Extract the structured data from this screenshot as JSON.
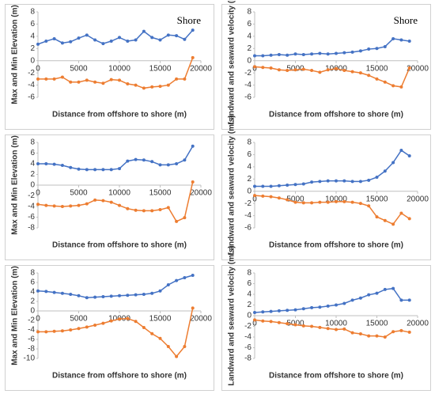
{
  "chart_data": [
    {
      "type": "line",
      "annotation": "Shore",
      "xlabel": "Distance from offshore to shore (m)",
      "ylabel": "Max and Min Elevation (m)",
      "x": [
        0,
        1000,
        2000,
        3000,
        4000,
        5000,
        6000,
        7000,
        8000,
        9000,
        10000,
        11000,
        12000,
        13000,
        14000,
        15000,
        16000,
        17000,
        18000,
        19000
      ],
      "xlim": [
        0,
        20000
      ],
      "xticks": [
        0,
        5000,
        10000,
        15000,
        20000
      ],
      "ylim": [
        -6,
        8
      ],
      "yticks": [
        -6,
        -4,
        -2,
        0,
        2,
        4,
        6,
        8
      ],
      "series": [
        {
          "color": "#4472c4",
          "values": [
            2.7,
            3.2,
            3.6,
            2.9,
            3.1,
            3.7,
            4.2,
            3.4,
            2.8,
            3.2,
            3.8,
            3.2,
            3.4,
            4.8,
            3.8,
            3.4,
            4.2,
            4.1,
            3.5,
            5.0
          ]
        },
        {
          "color": "#ed7d31",
          "values": [
            -3.0,
            -3.0,
            -3.0,
            -2.7,
            -3.5,
            -3.5,
            -3.2,
            -3.5,
            -3.7,
            -3.1,
            -3.2,
            -3.8,
            -4.0,
            -4.5,
            -4.3,
            -4.2,
            -4.0,
            -3.0,
            -3.0,
            0.5
          ]
        }
      ]
    },
    {
      "type": "line",
      "annotation": "Shore",
      "xlabel": "Distance from offshore to shore (m)",
      "ylabel": "Landward and seaward velocity (m/s)",
      "x": [
        0,
        1000,
        2000,
        3000,
        4000,
        5000,
        6000,
        7000,
        8000,
        9000,
        10000,
        11000,
        12000,
        13000,
        14000,
        15000,
        16000,
        17000,
        18000,
        19000
      ],
      "xlim": [
        0,
        20000
      ],
      "xticks": [
        0,
        5000,
        10000,
        15000,
        20000
      ],
      "ylim": [
        -6,
        8
      ],
      "yticks": [
        -6,
        -4,
        -2,
        0,
        2,
        4,
        6,
        8
      ],
      "series": [
        {
          "color": "#4472c4",
          "values": [
            0.8,
            0.8,
            0.9,
            1.0,
            0.9,
            1.1,
            1.0,
            1.1,
            1.2,
            1.1,
            1.2,
            1.3,
            1.4,
            1.6,
            1.9,
            2.0,
            2.3,
            3.6,
            3.4,
            3.2
          ]
        },
        {
          "color": "#ed7d31",
          "values": [
            -1.0,
            -1.1,
            -1.2,
            -1.5,
            -1.6,
            -1.5,
            -1.4,
            -1.6,
            -1.9,
            -1.5,
            -1.3,
            -1.6,
            -1.8,
            -2.0,
            -2.4,
            -3.0,
            -3.5,
            -4.1,
            -4.3,
            -1.2
          ]
        }
      ]
    },
    {
      "type": "line",
      "xlabel": "Distance from offshore to shore (m)",
      "ylabel": "Max and Min Elevation (m)",
      "x": [
        0,
        1000,
        2000,
        3000,
        4000,
        5000,
        6000,
        7000,
        8000,
        9000,
        10000,
        11000,
        12000,
        13000,
        14000,
        15000,
        16000,
        17000,
        18000,
        19000
      ],
      "xlim": [
        0,
        20000
      ],
      "xticks": [
        0,
        5000,
        10000,
        15000,
        20000
      ],
      "ylim": [
        -8,
        8
      ],
      "yticks": [
        -8,
        -6,
        -4,
        -2,
        0,
        2,
        4,
        6,
        8
      ],
      "series": [
        {
          "color": "#4472c4",
          "values": [
            4.0,
            4.0,
            3.9,
            3.7,
            3.3,
            3.0,
            2.9,
            2.9,
            2.9,
            2.9,
            3.1,
            4.5,
            4.8,
            4.7,
            4.4,
            3.8,
            3.8,
            4.0,
            4.7,
            7.3
          ]
        },
        {
          "color": "#ed7d31",
          "values": [
            -3.6,
            -3.8,
            -3.9,
            -4.0,
            -3.9,
            -3.8,
            -3.5,
            -2.8,
            -2.9,
            -3.2,
            -3.8,
            -4.4,
            -4.7,
            -4.8,
            -4.8,
            -4.6,
            -4.2,
            -6.8,
            -6.1,
            0.6
          ]
        }
      ]
    },
    {
      "type": "line",
      "xlabel": "Distance from offshore to shore (m)",
      "ylabel": "Landward and seaward velocity (m/s)",
      "x": [
        0,
        1000,
        2000,
        3000,
        4000,
        5000,
        6000,
        7000,
        8000,
        9000,
        10000,
        11000,
        12000,
        13000,
        14000,
        15000,
        16000,
        17000,
        18000,
        19000
      ],
      "xlim": [
        0,
        20000
      ],
      "xticks": [
        0,
        5000,
        10000,
        15000,
        20000
      ],
      "ylim": [
        -6,
        8
      ],
      "yticks": [
        -6,
        -4,
        -2,
        0,
        2,
        4,
        6,
        8
      ],
      "series": [
        {
          "color": "#4472c4",
          "values": [
            0.8,
            0.8,
            0.8,
            0.9,
            1.0,
            1.1,
            1.2,
            1.5,
            1.6,
            1.7,
            1.7,
            1.7,
            1.6,
            1.6,
            1.8,
            2.3,
            3.3,
            4.7,
            6.7,
            5.8
          ]
        },
        {
          "color": "#ed7d31",
          "values": [
            -0.7,
            -0.8,
            -0.9,
            -1.1,
            -1.4,
            -1.8,
            -1.9,
            -1.9,
            -1.8,
            -1.8,
            -1.7,
            -1.7,
            -1.8,
            -2.0,
            -2.4,
            -4.2,
            -4.8,
            -5.4,
            -3.6,
            -4.5
          ]
        }
      ]
    },
    {
      "type": "line",
      "xlabel": "Distance from offshore to shore (m)",
      "ylabel": "Max and Min Elevation (m)",
      "x": [
        0,
        1000,
        2000,
        3000,
        4000,
        5000,
        6000,
        7000,
        8000,
        9000,
        10000,
        11000,
        12000,
        13000,
        14000,
        15000,
        16000,
        17000,
        18000,
        19000
      ],
      "xlim": [
        0,
        20000
      ],
      "xticks": [
        0,
        5000,
        10000,
        15000,
        20000
      ],
      "ylim": [
        -10,
        8
      ],
      "yticks": [
        -10,
        -8,
        -6,
        -4,
        -2,
        0,
        2,
        4,
        6,
        8
      ],
      "series": [
        {
          "color": "#4472c4",
          "values": [
            4.2,
            4.1,
            3.9,
            3.7,
            3.5,
            3.2,
            2.8,
            2.9,
            3.0,
            3.1,
            3.2,
            3.3,
            3.4,
            3.5,
            3.7,
            4.2,
            5.5,
            6.4,
            7.0,
            7.5
          ]
        },
        {
          "color": "#ed7d31",
          "values": [
            -4.4,
            -4.4,
            -4.3,
            -4.2,
            -4.0,
            -3.7,
            -3.4,
            -3.0,
            -2.6,
            -2.1,
            -1.7,
            -1.6,
            -2.2,
            -3.5,
            -4.8,
            -5.8,
            -7.5,
            -9.6,
            -7.5,
            0.6
          ]
        }
      ]
    },
    {
      "type": "line",
      "xlabel": "Distance from offshore to shore (m)",
      "ylabel": "Landward and seaward velocity (m/s)",
      "x": [
        0,
        1000,
        2000,
        3000,
        4000,
        5000,
        6000,
        7000,
        8000,
        9000,
        10000,
        11000,
        12000,
        13000,
        14000,
        15000,
        16000,
        17000,
        18000,
        19000
      ],
      "xlim": [
        0,
        20000
      ],
      "xticks": [
        0,
        5000,
        10000,
        15000,
        20000
      ],
      "ylim": [
        -8,
        8
      ],
      "yticks": [
        -8,
        -6,
        -4,
        -2,
        0,
        2,
        4,
        6,
        8
      ],
      "series": [
        {
          "color": "#4472c4",
          "values": [
            0.6,
            0.7,
            0.8,
            0.9,
            1.0,
            1.1,
            1.3,
            1.5,
            1.6,
            1.8,
            2.0,
            2.3,
            2.9,
            3.3,
            3.9,
            4.2,
            4.9,
            5.1,
            2.9,
            2.9
          ]
        },
        {
          "color": "#ed7d31",
          "values": [
            -0.8,
            -1.0,
            -1.1,
            -1.3,
            -1.5,
            -1.7,
            -1.9,
            -2.0,
            -2.2,
            -2.4,
            -2.6,
            -2.5,
            -3.2,
            -3.4,
            -3.8,
            -3.8,
            -4.0,
            -3.0,
            -2.8,
            -3.1
          ]
        }
      ]
    }
  ]
}
